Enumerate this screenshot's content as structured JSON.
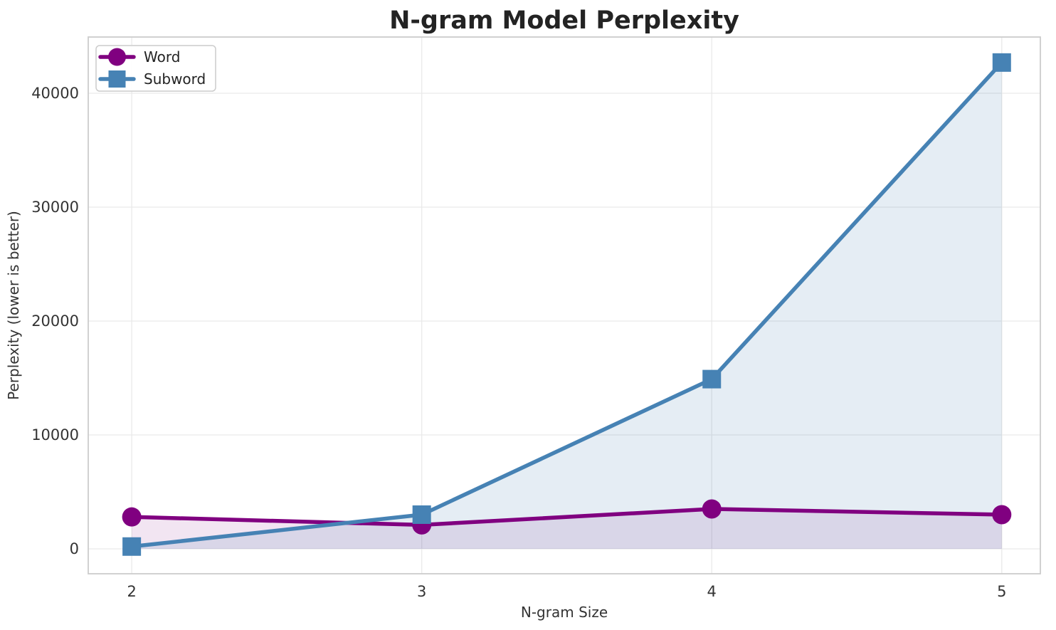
{
  "chart_data": {
    "type": "line",
    "title": "N-gram Model Perplexity",
    "xlabel": "N-gram Size",
    "ylabel": "Perplexity (lower is better)",
    "x": [
      2,
      3,
      4,
      5
    ],
    "series": [
      {
        "name": "Word",
        "color": "#800080",
        "marker": "circle",
        "fill_opacity": 0.1,
        "values": [
          2800,
          2100,
          3500,
          3000
        ]
      },
      {
        "name": "Subword",
        "color": "#4682B4",
        "marker": "square",
        "fill_opacity": 0.14,
        "values": [
          200,
          3000,
          14900,
          42700
        ]
      }
    ],
    "xticks": [
      2,
      3,
      4,
      5
    ],
    "yticks": [
      0,
      10000,
      20000,
      30000,
      40000
    ],
    "xlim": [
      1.85,
      5.133
    ],
    "ylim": [
      -2190,
      44940
    ],
    "grid": true,
    "area_fill_to_zero": true,
    "legend_position": "upper left"
  },
  "colors": {
    "background": "#ffffff",
    "grid": "#e9e9e9",
    "spine": "#cccccc",
    "tick_text": "#333333",
    "label_text": "#333333",
    "title_text": "#232323",
    "legend_border": "#cccccc",
    "legend_background": "#ffffff"
  }
}
